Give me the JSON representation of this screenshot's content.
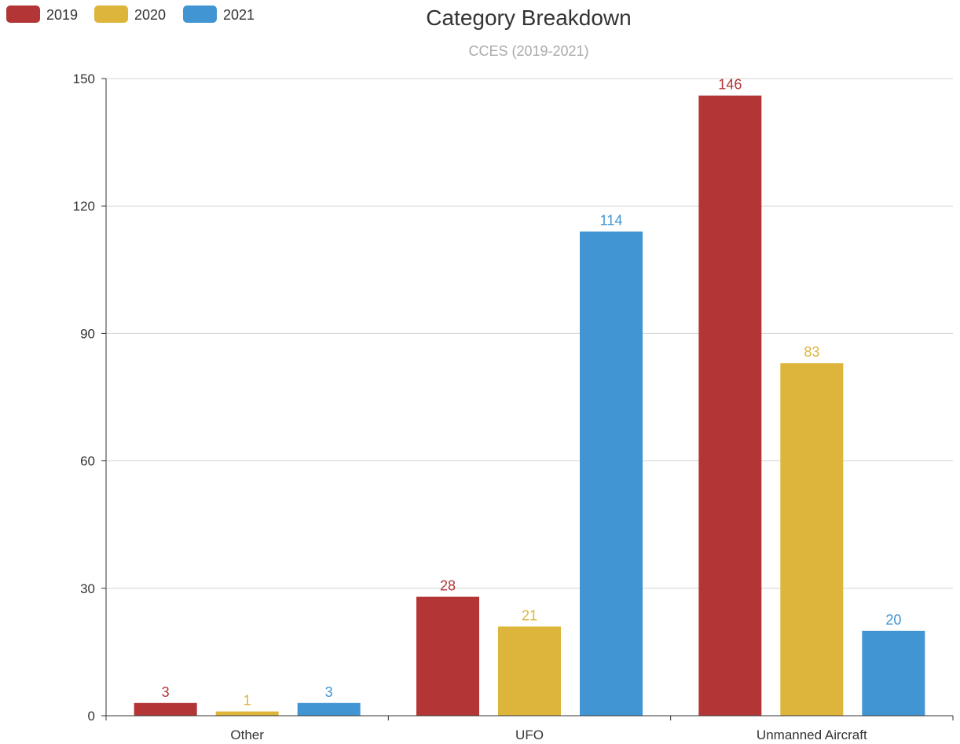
{
  "chart_data": {
    "type": "bar",
    "title": "Category Breakdown",
    "subtitle": "CCES (2019-2021)",
    "categories": [
      "Other",
      "UFO",
      "Unmanned Aircraft"
    ],
    "series": [
      {
        "name": "2019",
        "color": "#b33536",
        "values": [
          3,
          28,
          146
        ]
      },
      {
        "name": "2020",
        "color": "#ddb53b",
        "values": [
          1,
          21,
          83
        ]
      },
      {
        "name": "2021",
        "color": "#4195d3",
        "values": [
          3,
          114,
          20
        ]
      }
    ],
    "yticks": [
      "0",
      "30",
      "60",
      "90",
      "120",
      "150"
    ],
    "ylim": [
      0,
      150
    ],
    "grid": true,
    "legend_position": "top-left",
    "data_labels": true
  }
}
